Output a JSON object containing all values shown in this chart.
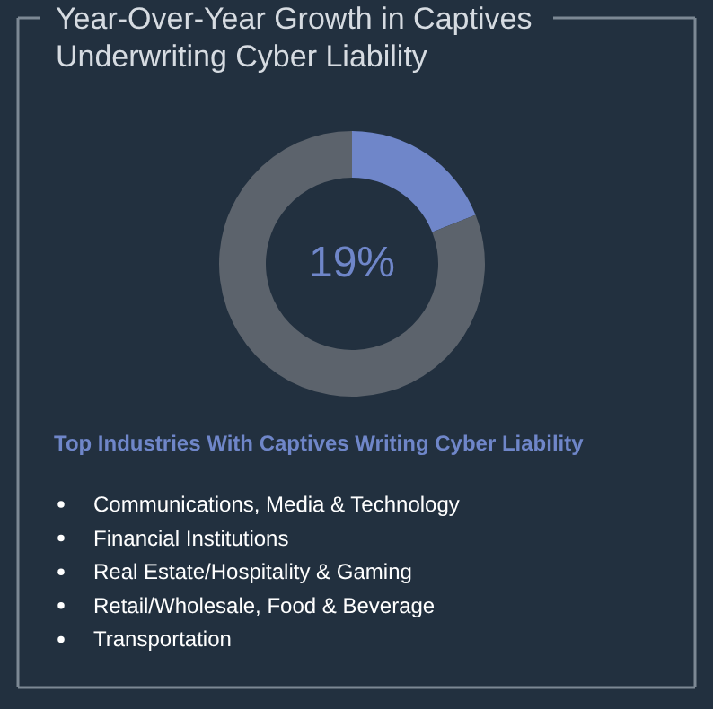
{
  "chart_data": {
    "type": "donut",
    "title": [
      "Year-Over-Year Growth in Captives",
      "Underwriting Cyber Liability"
    ],
    "categories": [
      null,
      null
    ],
    "values": [
      19,
      81
    ],
    "colors": [
      "#6f86c9",
      "#5c636c"
    ],
    "value_labels": [
      "19%",
      null
    ],
    "annotations": [
      "Top Industries With Captives Writing Cyber Liability",
      "Communications, Media & Technology",
      "Financial Institutions",
      "Real Estate/Hospitality & Gaming",
      "Retail/Wholesale, Food & Beverage",
      "Transportation"
    ]
  }
}
